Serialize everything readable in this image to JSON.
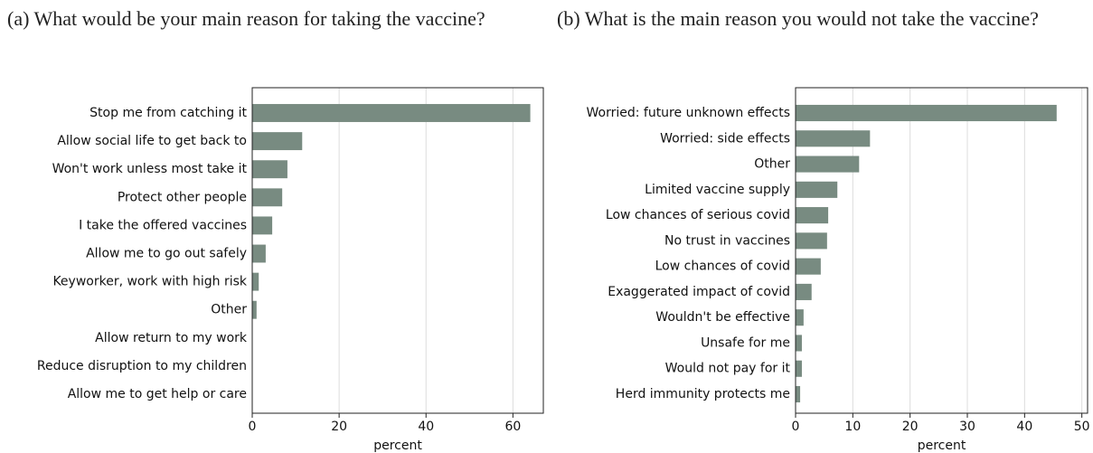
{
  "chart_data": [
    {
      "type": "barh",
      "title": "(a) What would be your main reason for taking the vaccine?",
      "xlabel": "percent",
      "categories": [
        "Stop me from catching it",
        "Allow social life to get back to",
        "Won't work unless most take it",
        "Protect other people",
        "I take the offered vaccines",
        "Allow me to go out safely",
        "Keyworker, work with high risk",
        "Other",
        "Allow return to my work",
        "Reduce disruption to my children",
        "Allow me to get help or care"
      ],
      "values": [
        64,
        11.5,
        8.1,
        6.9,
        4.6,
        3.1,
        1.5,
        1.0,
        0,
        0,
        0
      ],
      "color": "#788b81",
      "xlim": [
        0,
        67
      ],
      "xticks": [
        0,
        20,
        40,
        60
      ],
      "grid": true
    },
    {
      "type": "barh",
      "title": "(b) What is the main reason you would not take the vaccine?",
      "xlabel": "percent",
      "categories": [
        "Worried: future unknown effects",
        "Worried: side effects",
        "Other",
        "Limited vaccine supply",
        "Low chances of serious covid",
        "No trust in vaccines",
        "Low chances of covid",
        "Exaggerated impact of covid",
        "Wouldn't be effective",
        "Unsafe for me",
        "Would not pay for it",
        "Herd immunity protects me"
      ],
      "values": [
        45.6,
        13.0,
        11.1,
        7.3,
        5.7,
        5.5,
        4.4,
        2.8,
        1.4,
        1.1,
        1.1,
        0.8
      ],
      "color": "#788b81",
      "xlim": [
        0,
        51
      ],
      "xticks": [
        0,
        10,
        20,
        30,
        40,
        50
      ],
      "grid": true
    }
  ]
}
